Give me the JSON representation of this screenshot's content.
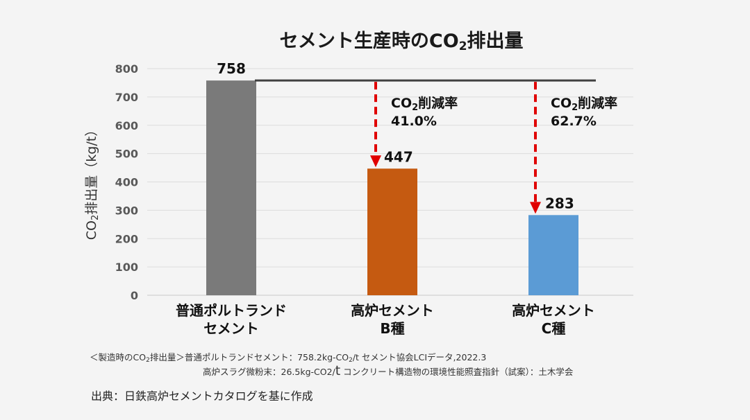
{
  "chart_data": {
    "type": "bar",
    "title": {
      "main": "セメント生産時のCO",
      "sub": "2",
      "rest": "排出量"
    },
    "ylabel": {
      "pre": "CO",
      "sub": "2",
      "rest": "排出量（kg/t）"
    },
    "ylim": [
      0,
      800
    ],
    "yticks": [
      0,
      100,
      200,
      300,
      400,
      500,
      600,
      700,
      800
    ],
    "grid": true,
    "categories": [
      {
        "lines": [
          "普通ポルトランド",
          "セメント"
        ]
      },
      {
        "lines": [
          "高炉セメント",
          "B種"
        ]
      },
      {
        "lines": [
          "高炉セメント",
          "C種"
        ]
      }
    ],
    "values": [
      758,
      447,
      283
    ],
    "data_labels": [
      "758",
      "447",
      "283"
    ],
    "colors": [
      "#7a7a7a",
      "#c55a11",
      "#5b9bd5"
    ],
    "reference_line": {
      "value": 758,
      "color": "#404040"
    },
    "reductions": [
      {
        "target_index": 1,
        "label_pre": "CO",
        "label_sub": "2",
        "label_rest": "削減率",
        "rate": "41.0%"
      },
      {
        "target_index": 2,
        "label_pre": "CO",
        "label_sub": "2",
        "label_rest": "削減率",
        "rate": "62.7%"
      }
    ],
    "arrow_color": "#e00000"
  },
  "notes": {
    "line1_a": "＜製造時のCO",
    "line1_sub": "2",
    "line1_b": "排出量＞普通ポルトランドセメント：758.2kg-CO",
    "line1_sub2": "2",
    "line1_c": "/t セメント協会LCIデータ,2022.3",
    "line2_a": "高炉スラグ微粉末：26.5kg-CO2/",
    "line2_big": "t",
    "line2_b": " コンクリート構造物の環境性能照査指針（試案）：土木学会"
  },
  "source": "出典：日鉄高炉セメントカタログを基に作成"
}
